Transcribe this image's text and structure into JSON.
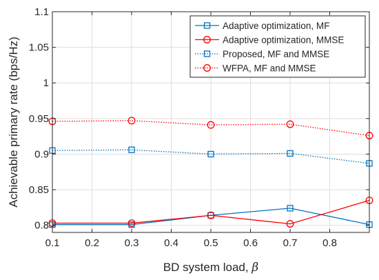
{
  "chart_data": {
    "type": "line",
    "xlabel": "BD system load, ",
    "xlabel_symbol": "β",
    "ylabel": "Achievable primary rate (bps/Hz)",
    "xlim": [
      0.1,
      0.9
    ],
    "ylim": [
      0.79,
      1.1
    ],
    "xticks": [
      "0.1",
      "0.2",
      "0.3",
      "0.4",
      "0.5",
      "0.6",
      "0.7",
      "0.8"
    ],
    "xtick_values": [
      0.1,
      0.2,
      0.3,
      0.4,
      0.5,
      0.6,
      0.7,
      0.8
    ],
    "yticks": [
      "0.8",
      "0.85",
      "0.9",
      "0.95",
      "1",
      "1.05",
      "1.1"
    ],
    "ytick_values": [
      0.8,
      0.85,
      0.9,
      0.95,
      1.0,
      1.05,
      1.1
    ],
    "grid": true,
    "legend_position": "top-right",
    "x": [
      0.1,
      0.3,
      0.5,
      0.7,
      0.9
    ],
    "series": [
      {
        "name": "Adaptive optimization, MF",
        "values": [
          0.801,
          0.801,
          0.814,
          0.824,
          0.801
        ],
        "color": "#0072BD",
        "marker": "square",
        "dash": "solid"
      },
      {
        "name": "Adaptive optimization, MMSE",
        "values": [
          0.803,
          0.803,
          0.814,
          0.802,
          0.835
        ],
        "color": "#FF0000",
        "marker": "circle",
        "dash": "solid"
      },
      {
        "name": "Proposed, MF and MMSE",
        "values": [
          0.905,
          0.906,
          0.9,
          0.901,
          0.887
        ],
        "color": "#0072BD",
        "marker": "square",
        "dash": "dotted"
      },
      {
        "name": "WFPA, MF and MMSE",
        "values": [
          0.946,
          0.947,
          0.941,
          0.942,
          0.926
        ],
        "color": "#FF0000",
        "marker": "circle",
        "dash": "dotted"
      }
    ]
  }
}
